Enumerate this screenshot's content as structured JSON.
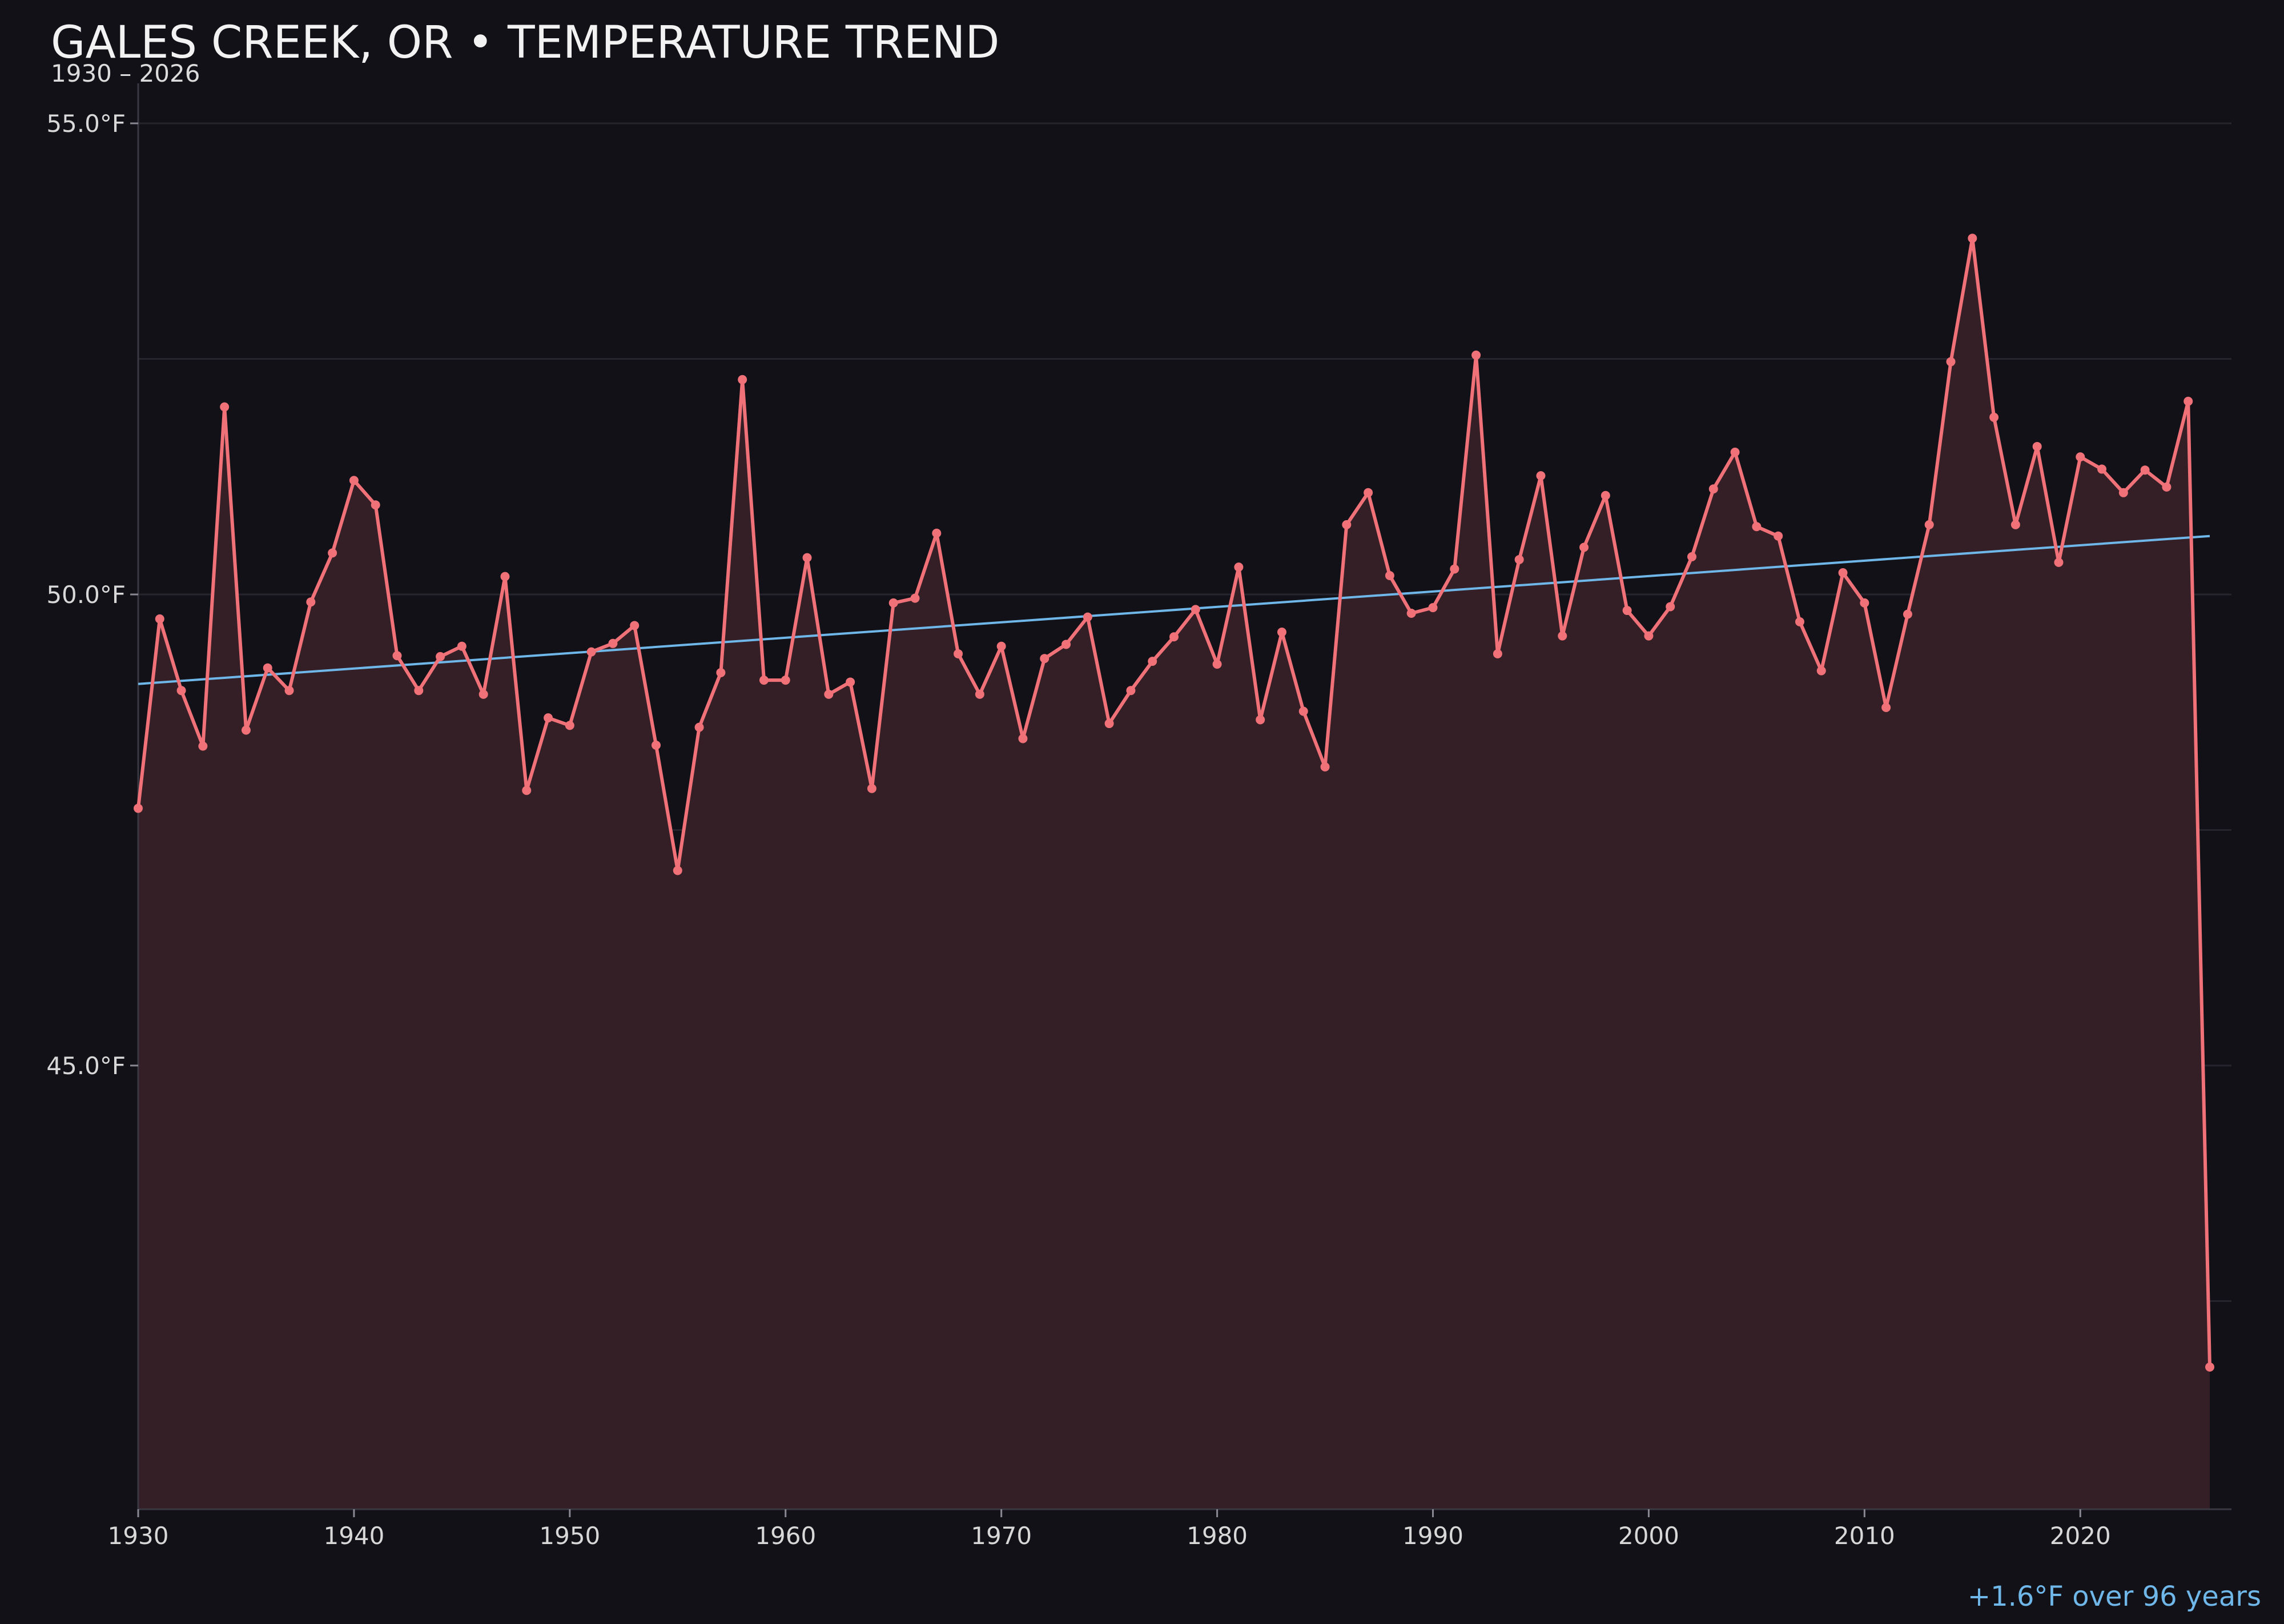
{
  "chart_data": {
    "type": "line",
    "title": "GALES CREEK, OR • TEMPERATURE TREND",
    "subtitle": "1930 – 2026",
    "unit": "°F",
    "xlim": [
      1930,
      2026
    ],
    "ylim": [
      40.3,
      55.0
    ],
    "x_ticks": [
      1930,
      1940,
      1950,
      1960,
      1970,
      1980,
      1990,
      2000,
      2010,
      2020
    ],
    "y_ticks": [
      45.0,
      50.0,
      55.0
    ],
    "y_tick_labels": [
      "45.0°F",
      "50.0°F",
      "55.0°F"
    ],
    "x_tick_labels": [
      "1930",
      "1940",
      "1950",
      "1960",
      "1970",
      "1980",
      "1990",
      "2000",
      "2010",
      "2020"
    ],
    "grid": "horizontal",
    "area_fill": true,
    "series": [
      {
        "color": "#f07178",
        "x": [
          1930,
          1931,
          1932,
          1933,
          1934,
          1935,
          1936,
          1937,
          1938,
          1939,
          1940,
          1941,
          1942,
          1943,
          1944,
          1945,
          1946,
          1947,
          1948,
          1949,
          1950,
          1951,
          1952,
          1953,
          1954,
          1955,
          1956,
          1957,
          1958,
          1959,
          1960,
          1961,
          1962,
          1963,
          1964,
          1965,
          1966,
          1967,
          1968,
          1969,
          1970,
          1971,
          1972,
          1973,
          1974,
          1975,
          1976,
          1977,
          1978,
          1979,
          1980,
          1981,
          1982,
          1983,
          1984,
          1985,
          1986,
          1987,
          1988,
          1989,
          1990,
          1991,
          1992,
          1993,
          1994,
          1995,
          1996,
          1997,
          1998,
          1999,
          2000,
          2001,
          2002,
          2003,
          2004,
          2005,
          2006,
          2007,
          2008,
          2009,
          2010,
          2011,
          2012,
          2013,
          2014,
          2015,
          2016,
          2017,
          2018,
          2019,
          2020,
          2021,
          2022,
          2023,
          2024,
          2025,
          2026
        ],
        "values": [
          47.73,
          49.74,
          48.98,
          48.39,
          51.99,
          48.56,
          49.22,
          48.98,
          49.92,
          50.44,
          51.21,
          50.95,
          49.35,
          48.98,
          49.34,
          49.45,
          48.94,
          50.19,
          47.92,
          48.69,
          48.61,
          49.39,
          49.48,
          49.67,
          48.4,
          47.07,
          48.59,
          49.17,
          52.28,
          49.09,
          49.09,
          50.39,
          48.94,
          49.07,
          47.94,
          49.91,
          49.96,
          50.65,
          49.37,
          48.94,
          49.45,
          48.47,
          49.32,
          49.47,
          49.76,
          48.63,
          48.98,
          49.29,
          49.55,
          49.84,
          49.26,
          50.29,
          48.67,
          49.6,
          48.76,
          48.17,
          50.74,
          51.08,
          50.2,
          49.8,
          49.86,
          50.27,
          52.54,
          49.37,
          50.37,
          51.26,
          49.56,
          50.5,
          51.05,
          49.83,
          49.56,
          49.87,
          50.4,
          51.12,
          51.51,
          50.72,
          50.62,
          49.71,
          49.19,
          50.23,
          49.91,
          48.8,
          49.79,
          50.74,
          52.47,
          53.78,
          51.88,
          50.74,
          51.57,
          50.34,
          51.46,
          51.33,
          51.08,
          51.32,
          51.14,
          52.05,
          41.8
        ]
      }
    ],
    "trend": {
      "color": "#6fb7e8",
      "x": [
        1930,
        2026
      ],
      "values": [
        49.05,
        50.62
      ],
      "annotation": "+1.6°F over 96 years"
    }
  }
}
